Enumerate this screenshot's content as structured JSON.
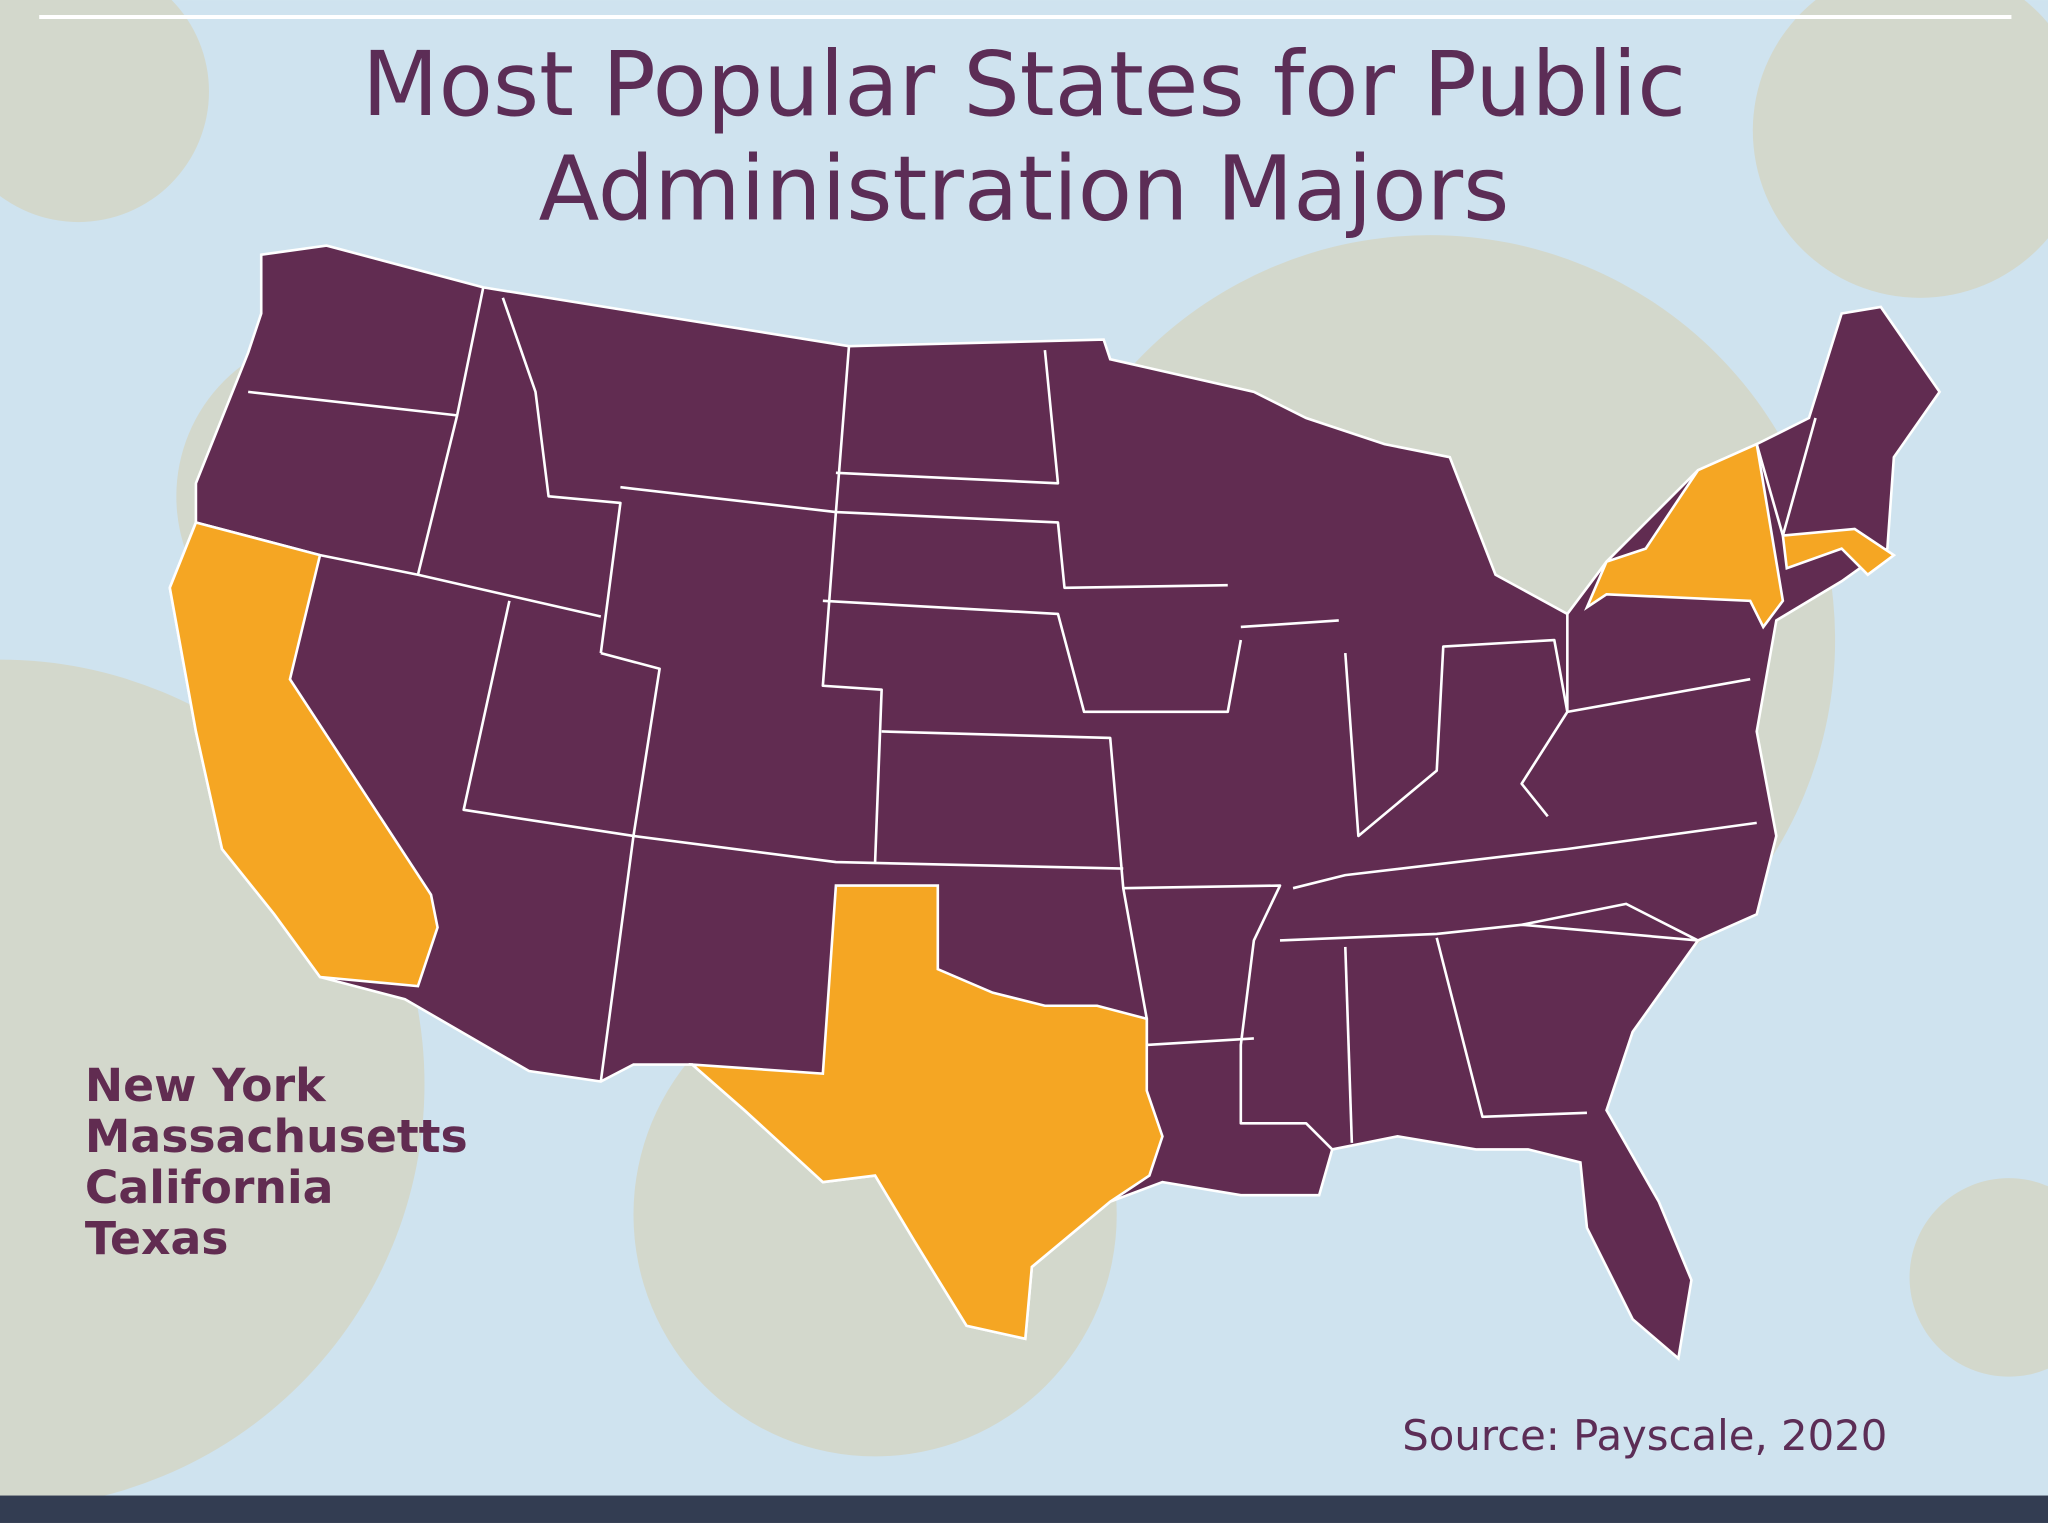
{
  "title_lines": [
    "Most Popular States for Public",
    "Administration Majors"
  ],
  "states": [
    "New York",
    "Massachusetts",
    "California",
    "Texas"
  ],
  "source": "Source: Payscale, 2020"
}
